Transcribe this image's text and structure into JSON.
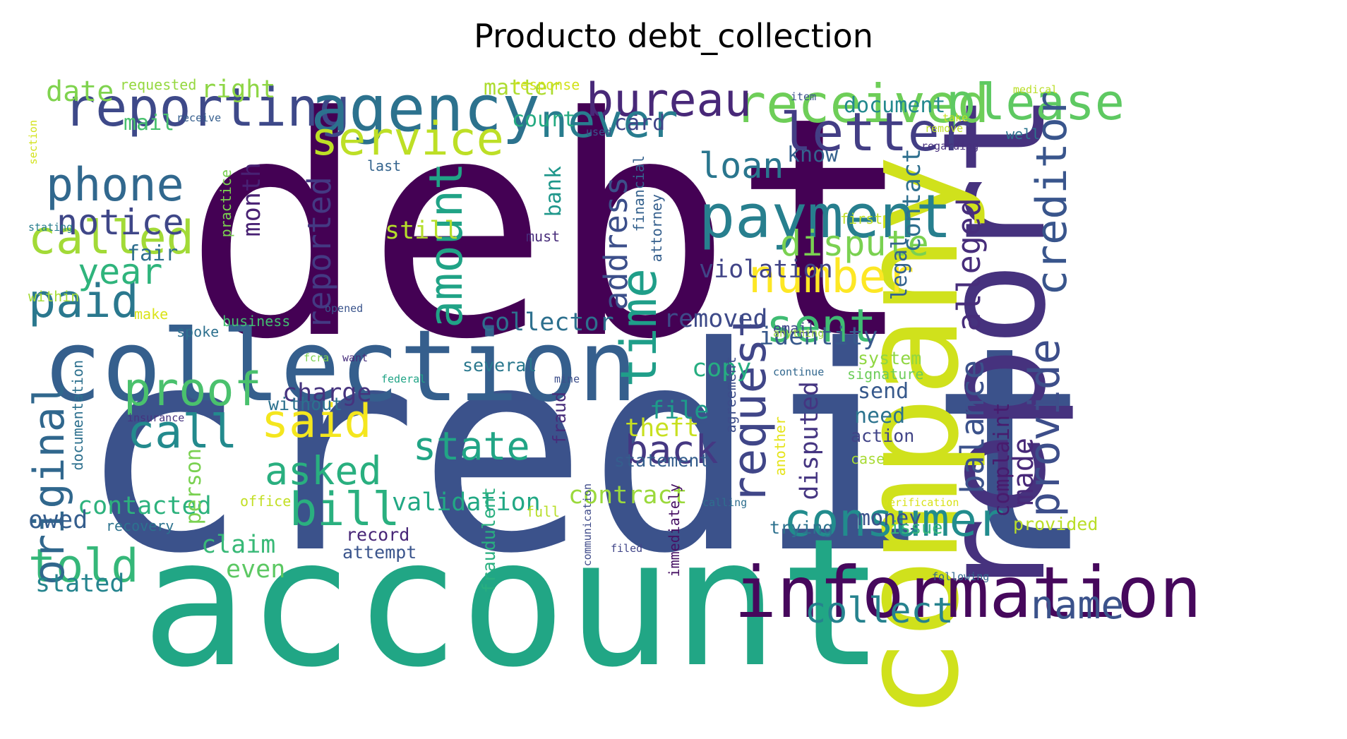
{
  "title": "Producto debt_collection",
  "words": [
    {
      "text": "debt",
      "color": "#440154"
    },
    {
      "text": "credit",
      "color": "#3b528b"
    },
    {
      "text": "account",
      "color": "#21a685"
    },
    {
      "text": "collection",
      "color": "#355f8d"
    },
    {
      "text": "report",
      "color": "#46327e"
    },
    {
      "text": "company",
      "color": "#d0e11c"
    },
    {
      "text": "information",
      "color": "#46085c"
    },
    {
      "text": "payment",
      "color": "#277f8e"
    },
    {
      "text": "reporting",
      "color": "#3e4989"
    },
    {
      "text": "agency",
      "color": "#2c728e"
    },
    {
      "text": "received",
      "color": "#6ece58"
    },
    {
      "text": "please",
      "color": "#5ec962"
    },
    {
      "text": "letter",
      "color": "#433e85"
    },
    {
      "text": "bureau",
      "color": "#482878"
    },
    {
      "text": "never",
      "color": "#287c8e"
    },
    {
      "text": "service",
      "color": "#bddf26"
    },
    {
      "text": "phone",
      "color": "#31688e"
    },
    {
      "text": "called",
      "color": "#a2da37"
    },
    {
      "text": "paid",
      "color": "#2a788e"
    },
    {
      "text": "notice",
      "color": "#3f4788"
    },
    {
      "text": "year",
      "color": "#2fb47c"
    },
    {
      "text": "amount",
      "color": "#20a386"
    },
    {
      "text": "time",
      "color": "#1f9e89"
    },
    {
      "text": "request",
      "color": "#404688"
    },
    {
      "text": "number",
      "color": "#fde725"
    },
    {
      "text": "sent",
      "color": "#3fbc73"
    },
    {
      "text": "consumer",
      "color": "#228c8d"
    },
    {
      "text": "creditor",
      "color": "#39558c"
    },
    {
      "text": "provide",
      "color": "#3d4e8a"
    },
    {
      "text": "proof",
      "color": "#4ac16d"
    },
    {
      "text": "call",
      "color": "#238a8d"
    },
    {
      "text": "said",
      "color": "#f4e61e"
    },
    {
      "text": "told",
      "color": "#35b779"
    },
    {
      "text": "original",
      "color": "#30678d"
    },
    {
      "text": "bill",
      "color": "#2ab07f"
    },
    {
      "text": "asked",
      "color": "#29af7f"
    },
    {
      "text": "state",
      "color": "#21a585"
    },
    {
      "text": "back",
      "color": "#453882"
    },
    {
      "text": "name",
      "color": "#3b528b"
    },
    {
      "text": "collect",
      "color": "#26828e"
    },
    {
      "text": "dispute",
      "color": "#7ad151"
    },
    {
      "text": "loan",
      "color": "#2a768e"
    },
    {
      "text": "address",
      "color": "#3c4f8a"
    },
    {
      "text": "reported",
      "color": "#443983"
    },
    {
      "text": "alleged",
      "color": "#472d7b"
    },
    {
      "text": "balance",
      "color": "#3b528b"
    },
    {
      "text": "violation",
      "color": "#414487"
    },
    {
      "text": "identity",
      "color": "#38598c"
    },
    {
      "text": "removed",
      "color": "#3e4a89"
    },
    {
      "text": "collector",
      "color": "#2d708e"
    },
    {
      "text": "validation",
      "color": "#22a884"
    },
    {
      "text": "contacted",
      "color": "#2db27d"
    },
    {
      "text": "contract",
      "color": "#9bd93c"
    },
    {
      "text": "copy",
      "color": "#26ad81"
    },
    {
      "text": "file",
      "color": "#1e9b8a"
    },
    {
      "text": "theft",
      "color": "#c8e020"
    },
    {
      "text": "charge",
      "color": "#46337e"
    },
    {
      "text": "date",
      "color": "#7fd34e"
    },
    {
      "text": "right",
      "color": "#8ed645"
    },
    {
      "text": "matter",
      "color": "#addc30"
    },
    {
      "text": "document",
      "color": "#23898e"
    },
    {
      "text": "court",
      "color": "#25ab82"
    },
    {
      "text": "card",
      "color": "#404588"
    },
    {
      "text": "know",
      "color": "#34618d"
    },
    {
      "text": "mail",
      "color": "#48c16e"
    },
    {
      "text": "still",
      "color": "#b5de2b"
    },
    {
      "text": "fair",
      "color": "#2e6e8e"
    },
    {
      "text": "month",
      "color": "#482173"
    },
    {
      "text": "bank",
      "color": "#1f978b"
    },
    {
      "text": "contact",
      "color": "#2e6f8e"
    },
    {
      "text": "legal",
      "color": "#33628d"
    },
    {
      "text": "send",
      "color": "#37598c"
    },
    {
      "text": "need",
      "color": "#2c738e"
    },
    {
      "text": "action",
      "color": "#414487"
    },
    {
      "text": "made",
      "color": "#482979"
    },
    {
      "text": "complaint",
      "color": "#481b6d"
    },
    {
      "text": "disputed",
      "color": "#453581"
    },
    {
      "text": "money",
      "color": "#3b528b"
    },
    {
      "text": "claim",
      "color": "#38b977"
    },
    {
      "text": "even",
      "color": "#5cc863"
    },
    {
      "text": "stated",
      "color": "#25848e"
    },
    {
      "text": "owed",
      "color": "#355e8d"
    },
    {
      "text": "record",
      "color": "#482677"
    },
    {
      "text": "attempt",
      "color": "#3a548c"
    },
    {
      "text": "person",
      "color": "#7ad151"
    },
    {
      "text": "statement",
      "color": "#355e8d"
    },
    {
      "text": "email",
      "color": "#404588"
    },
    {
      "text": "trying",
      "color": "#2d718e"
    },
    {
      "text": "issue",
      "color": "#35b779"
    },
    {
      "text": "case",
      "color": "#a8db34"
    },
    {
      "text": "provided",
      "color": "#bade28"
    },
    {
      "text": "system",
      "color": "#90d743"
    },
    {
      "text": "signature",
      "color": "#6ccd5a"
    },
    {
      "text": "fraud",
      "color": "#472c7a"
    },
    {
      "text": "fraudulent",
      "color": "#29af7f"
    },
    {
      "text": "immediately",
      "color": "#471164"
    },
    {
      "text": "agreement",
      "color": "#3d4d8a"
    },
    {
      "text": "another",
      "color": "#e5e419"
    },
    {
      "text": "several",
      "color": "#2a788e"
    },
    {
      "text": "without",
      "color": "#2c718e"
    },
    {
      "text": "documentation",
      "color": "#2d708e"
    },
    {
      "text": "practice",
      "color": "#7ad151"
    },
    {
      "text": "financial",
      "color": "#34618d"
    },
    {
      "text": "attorney",
      "color": "#355f8d"
    },
    {
      "text": "last",
      "color": "#33638d"
    },
    {
      "text": "must",
      "color": "#472c7a"
    },
    {
      "text": "business",
      "color": "#43bf71"
    },
    {
      "text": "within",
      "color": "#a5db36"
    },
    {
      "text": "make",
      "color": "#dae319"
    },
    {
      "text": "office",
      "color": "#c2df23"
    },
    {
      "text": "insurance",
      "color": "#46337f"
    },
    {
      "text": "full",
      "color": "#b8de29"
    },
    {
      "text": "recovery",
      "color": "#2c728e"
    },
    {
      "text": "federal",
      "color": "#20a486"
    },
    {
      "text": "opened",
      "color": "#3a548c"
    },
    {
      "text": "want",
      "color": "#472e7c"
    },
    {
      "text": "filed",
      "color": "#404588"
    },
    {
      "text": "calling",
      "color": "#2e6f8e"
    },
    {
      "text": "verification",
      "color": "#d8e219"
    },
    {
      "text": "first",
      "color": "#c0df25"
    },
    {
      "text": "item",
      "color": "#3b518b"
    },
    {
      "text": "remove",
      "color": "#bddf26"
    },
    {
      "text": "regarding",
      "color": "#472f7d"
    },
    {
      "text": "well",
      "color": "#2b748e"
    },
    {
      "text": "take",
      "color": "#c5e021"
    },
    {
      "text": "medical",
      "color": "#bade28"
    },
    {
      "text": "response",
      "color": "#d2e21b"
    },
    {
      "text": "requested",
      "color": "#95d840"
    },
    {
      "text": "receive",
      "color": "#355e8d"
    },
    {
      "text": "used",
      "color": "#3a548c"
    },
    {
      "text": "section",
      "color": "#d2e21b"
    },
    {
      "text": "stating",
      "color": "#287d8e"
    },
    {
      "text": "spoke",
      "color": "#2d708e"
    },
    {
      "text": "continue",
      "color": "#31678e"
    },
    {
      "text": "anything",
      "color": "#9dd93b"
    },
    {
      "text": "following",
      "color": "#31678e"
    },
    {
      "text": "mine",
      "color": "#3d4e8a"
    },
    {
      "text": "fcra",
      "color": "#7cd250"
    },
    {
      "text": "communication",
      "color": "#3e4a89"
    }
  ]
}
